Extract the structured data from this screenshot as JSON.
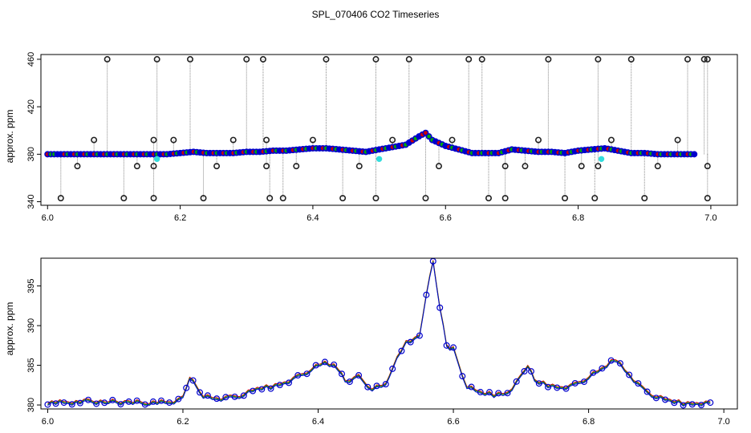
{
  "title": "SPL_070406  CO2 Timeseries",
  "colors": {
    "blue": "#0000cc",
    "green": "#00aa00",
    "red": "#cc0000",
    "cyan": "#33dddd",
    "dark": "#222222",
    "gray": "#888888"
  },
  "chart_data": [
    {
      "type": "scatter",
      "ylabel": "approx. ppm",
      "xlim": [
        5.99,
        7.04
      ],
      "ylim": [
        337,
        464
      ],
      "x_ticks": [
        "6.0",
        "6.2",
        "6.4",
        "6.6",
        "6.8",
        "7.0"
      ],
      "y_ticks": [
        "340",
        "380",
        "420",
        "460"
      ],
      "series": [
        {
          "values": [
            [
              6.0,
              380
            ],
            [
              6.01,
              380
            ],
            [
              6.02,
              380
            ],
            [
              6.04,
              380
            ],
            [
              6.06,
              380
            ],
            [
              6.08,
              380
            ],
            [
              6.1,
              380
            ],
            [
              6.12,
              380
            ],
            [
              6.14,
              380
            ],
            [
              6.16,
              380
            ],
            [
              6.18,
              380
            ],
            [
              6.2,
              381
            ],
            [
              6.22,
              382
            ],
            [
              6.24,
              381
            ],
            [
              6.26,
              381
            ],
            [
              6.28,
              381
            ],
            [
              6.3,
              382
            ],
            [
              6.32,
              382
            ],
            [
              6.34,
              383
            ],
            [
              6.36,
              383
            ],
            [
              6.38,
              384
            ],
            [
              6.4,
              385
            ],
            [
              6.42,
              385
            ],
            [
              6.44,
              384
            ],
            [
              6.46,
              383
            ],
            [
              6.48,
              382
            ],
            [
              6.5,
              384
            ],
            [
              6.52,
              386
            ],
            [
              6.54,
              388
            ],
            [
              6.56,
              395
            ],
            [
              6.57,
              398
            ],
            [
              6.58,
              392
            ],
            [
              6.6,
              387
            ],
            [
              6.62,
              384
            ],
            [
              6.64,
              381
            ],
            [
              6.66,
              381
            ],
            [
              6.68,
              381
            ],
            [
              6.7,
              384
            ],
            [
              6.72,
              383
            ],
            [
              6.74,
              382
            ],
            [
              6.76,
              382
            ],
            [
              6.78,
              381
            ],
            [
              6.8,
              383
            ],
            [
              6.82,
              384
            ],
            [
              6.84,
              385
            ],
            [
              6.86,
              383
            ],
            [
              6.88,
              381
            ],
            [
              6.9,
              381
            ],
            [
              6.92,
              380
            ],
            [
              6.94,
              380
            ],
            [
              6.96,
              380
            ],
            [
              6.98,
              380
            ]
          ]
        },
        {
          "values": [
            [
              6.09,
              460
            ],
            [
              6.165,
              460
            ],
            [
              6.215,
              460
            ],
            [
              6.3,
              460
            ],
            [
              6.325,
              460
            ],
            [
              6.42,
              460
            ],
            [
              6.495,
              460
            ],
            [
              6.545,
              460
            ],
            [
              6.635,
              460
            ],
            [
              6.655,
              460
            ],
            [
              6.755,
              460
            ],
            [
              6.83,
              460
            ],
            [
              6.88,
              460
            ],
            [
              6.965,
              460
            ],
            [
              6.99,
              460
            ],
            [
              6.995,
              460
            ],
            [
              6.07,
              392
            ],
            [
              6.16,
              392
            ],
            [
              6.19,
              392
            ],
            [
              6.28,
              392
            ],
            [
              6.33,
              392
            ],
            [
              6.4,
              392
            ],
            [
              6.52,
              392
            ],
            [
              6.61,
              392
            ],
            [
              6.74,
              392
            ],
            [
              6.85,
              392
            ],
            [
              6.95,
              392
            ],
            [
              6.045,
              370
            ],
            [
              6.135,
              370
            ],
            [
              6.16,
              370
            ],
            [
              6.255,
              370
            ],
            [
              6.33,
              370
            ],
            [
              6.375,
              370
            ],
            [
              6.47,
              370
            ],
            [
              6.59,
              370
            ],
            [
              6.69,
              370
            ],
            [
              6.72,
              370
            ],
            [
              6.805,
              370
            ],
            [
              6.83,
              370
            ],
            [
              6.92,
              370
            ],
            [
              6.995,
              370
            ],
            [
              6.02,
              343
            ],
            [
              6.115,
              343
            ],
            [
              6.16,
              343
            ],
            [
              6.235,
              343
            ],
            [
              6.335,
              343
            ],
            [
              6.355,
              343
            ],
            [
              6.445,
              343
            ],
            [
              6.495,
              343
            ],
            [
              6.57,
              343
            ],
            [
              6.665,
              343
            ],
            [
              6.69,
              343
            ],
            [
              6.78,
              343
            ],
            [
              6.825,
              343
            ],
            [
              6.9,
              343
            ],
            [
              6.995,
              343
            ]
          ]
        },
        {
          "values": [
            [
              6.165,
              376
            ],
            [
              6.5,
              376
            ],
            [
              6.835,
              376
            ]
          ]
        }
      ]
    },
    {
      "type": "line",
      "ylabel": "approx. ppm",
      "xlim": [
        5.99,
        7.02
      ],
      "ylim": [
        379.5,
        398.5
      ],
      "x_ticks": [
        "6.0",
        "6.2",
        "6.4",
        "6.6",
        "6.8",
        "7.0"
      ],
      "y_ticks": [
        "380",
        "385",
        "390",
        "395"
      ],
      "series": [
        {
          "values": [
            [
              6.0,
              380.3
            ],
            [
              6.03,
              380.3
            ],
            [
              6.06,
              380.4
            ],
            [
              6.09,
              380.4
            ],
            [
              6.12,
              380.3
            ],
            [
              6.15,
              380.3
            ],
            [
              6.18,
              380.3
            ],
            [
              6.2,
              380.8
            ],
            [
              6.21,
              383.5
            ],
            [
              6.22,
              382.2
            ],
            [
              6.23,
              381.2
            ],
            [
              6.25,
              380.8
            ],
            [
              6.27,
              380.9
            ],
            [
              6.29,
              381.3
            ],
            [
              6.31,
              382.0
            ],
            [
              6.33,
              382.3
            ],
            [
              6.35,
              382.8
            ],
            [
              6.37,
              383.5
            ],
            [
              6.39,
              384.5
            ],
            [
              6.41,
              385.3
            ],
            [
              6.43,
              384.6
            ],
            [
              6.44,
              383.0
            ],
            [
              6.46,
              383.5
            ],
            [
              6.48,
              382.0
            ],
            [
              6.5,
              382.5
            ],
            [
              6.51,
              384.8
            ],
            [
              6.53,
              388.0
            ],
            [
              6.55,
              388.5
            ],
            [
              6.56,
              394.0
            ],
            [
              6.57,
              398.0
            ],
            [
              6.58,
              392.5
            ],
            [
              6.59,
              387.5
            ],
            [
              6.6,
              387.0
            ],
            [
              6.62,
              382.3
            ],
            [
              6.64,
              381.5
            ],
            [
              6.66,
              381.3
            ],
            [
              6.68,
              381.5
            ],
            [
              6.7,
              383.5
            ],
            [
              6.71,
              385.0
            ],
            [
              6.72,
              383.0
            ],
            [
              6.74,
              382.5
            ],
            [
              6.76,
              382.2
            ],
            [
              6.78,
              382.5
            ],
            [
              6.8,
              383.5
            ],
            [
              6.82,
              384.5
            ],
            [
              6.84,
              385.8
            ],
            [
              6.86,
              383.8
            ],
            [
              6.88,
              382.0
            ],
            [
              6.9,
              381.0
            ],
            [
              6.92,
              380.5
            ],
            [
              6.94,
              380.2
            ],
            [
              6.96,
              380.2
            ],
            [
              6.98,
              380.3
            ]
          ]
        }
      ]
    }
  ]
}
